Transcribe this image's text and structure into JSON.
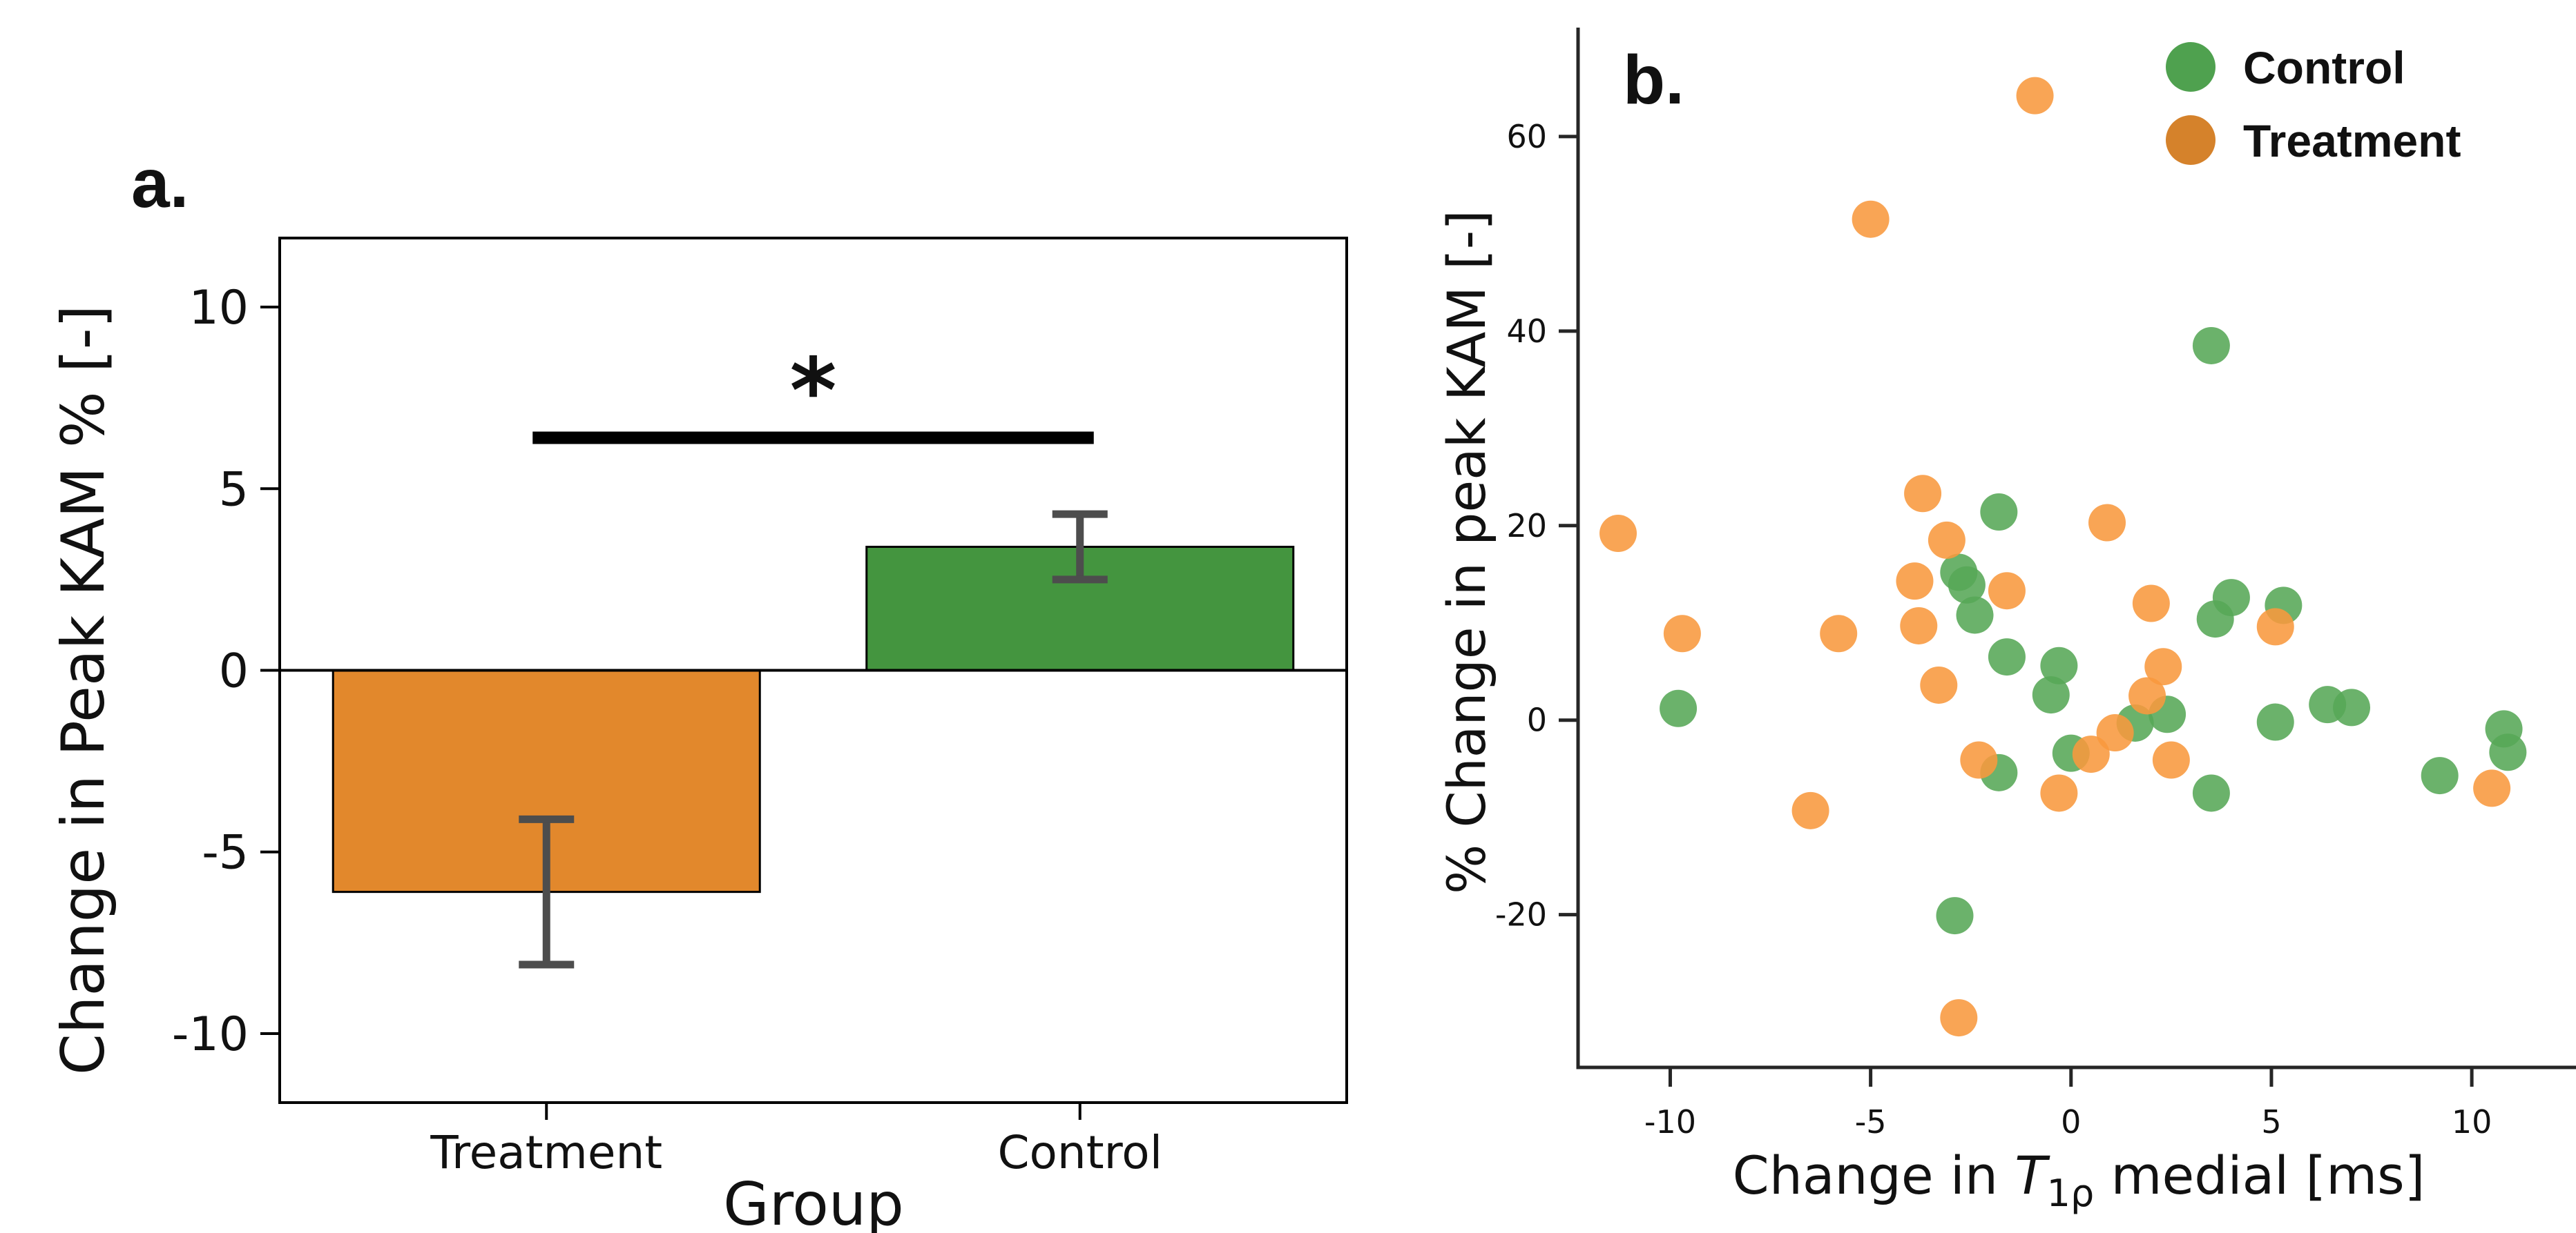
{
  "figure": {
    "background": "#ffffff",
    "panel_a_label": "a.",
    "panel_b_label": "b."
  },
  "chart_data": [
    {
      "id": "panel_a",
      "type": "bar",
      "panel_label": "a.",
      "xlabel": "Group",
      "ylabel": "Change in Peak KAM % [-]",
      "categories": [
        "Treatment",
        "Control"
      ],
      "values": [
        -6.1,
        3.4
      ],
      "errors": [
        2.0,
        0.9
      ],
      "bar_colors": [
        "#E2882C",
        "#44953F"
      ],
      "bar_edge_color": "#000000",
      "error_color": "#4D4D4D",
      "axis_color": "#000000",
      "yticks": [
        10,
        5,
        0,
        -5,
        -10
      ],
      "ylim": [
        -11.9,
        11.9
      ],
      "grid": false,
      "significance": {
        "label": "*",
        "line_y": 6.4,
        "star_y": 7.6,
        "from_category": "Treatment",
        "to_category": "Control",
        "line_color": "#000000"
      }
    },
    {
      "id": "panel_b",
      "type": "scatter",
      "panel_label": "b.",
      "xlabel_parts": {
        "pre": "Change in ",
        "symbol": "T",
        "subscript": "1ρ",
        "post": " medial [ms]"
      },
      "ylabel": "% Change in peak KAM [-]",
      "xticks": [
        -10,
        -5,
        0,
        5,
        10
      ],
      "yticks": [
        -20,
        0,
        20,
        40,
        60
      ],
      "xlim": [
        -12.3,
        12.6
      ],
      "ylim": [
        -35.7,
        71.2
      ],
      "grid": false,
      "axis_color": "#262626",
      "marker_radius": 27,
      "marker_opacity": 0.88,
      "legend": {
        "position": "upper right",
        "entries": [
          {
            "label": "Control",
            "color": "#4FA14F"
          },
          {
            "label": "Treatment",
            "color": "#D5822B"
          }
        ]
      },
      "series": [
        {
          "name": "Control",
          "color": "#57A757",
          "points": [
            [
              -9.8,
              1.2
            ],
            [
              -2.9,
              -20.1
            ],
            [
              -2.8,
              15.2
            ],
            [
              -2.6,
              13.9
            ],
            [
              -2.4,
              10.8
            ],
            [
              -1.8,
              21.4
            ],
            [
              -1.8,
              -5.4
            ],
            [
              -1.6,
              6.5
            ],
            [
              -0.5,
              2.6
            ],
            [
              -0.3,
              5.6
            ],
            [
              0.0,
              -3.4
            ],
            [
              1.6,
              -0.3
            ],
            [
              2.4,
              0.6
            ],
            [
              3.5,
              38.5
            ],
            [
              3.5,
              -7.5
            ],
            [
              3.6,
              10.4
            ],
            [
              4.0,
              12.6
            ],
            [
              5.1,
              -0.2
            ],
            [
              5.3,
              11.8
            ],
            [
              6.4,
              1.6
            ],
            [
              7.0,
              1.3
            ],
            [
              9.2,
              -5.7
            ],
            [
              10.8,
              -0.9
            ],
            [
              10.9,
              -3.3
            ]
          ]
        },
        {
          "name": "Treatment",
          "color": "#F8993E",
          "points": [
            [
              -11.3,
              19.2
            ],
            [
              -9.7,
              8.9
            ],
            [
              -6.5,
              -9.3
            ],
            [
              -5.8,
              8.9
            ],
            [
              -5.0,
              51.5
            ],
            [
              -3.9,
              14.3
            ],
            [
              -3.8,
              9.7
            ],
            [
              -3.7,
              23.3
            ],
            [
              -3.3,
              3.6
            ],
            [
              -3.1,
              18.5
            ],
            [
              -2.8,
              -30.6
            ],
            [
              -2.3,
              -4.1
            ],
            [
              -1.6,
              13.3
            ],
            [
              -0.9,
              64.2
            ],
            [
              -0.3,
              -7.5
            ],
            [
              0.5,
              -3.5
            ],
            [
              0.9,
              20.3
            ],
            [
              1.1,
              -1.3
            ],
            [
              1.9,
              2.5
            ],
            [
              2.0,
              12.0
            ],
            [
              2.3,
              5.5
            ],
            [
              2.5,
              -4.1
            ],
            [
              5.1,
              9.6
            ],
            [
              10.5,
              -7.0
            ]
          ]
        }
      ]
    }
  ]
}
